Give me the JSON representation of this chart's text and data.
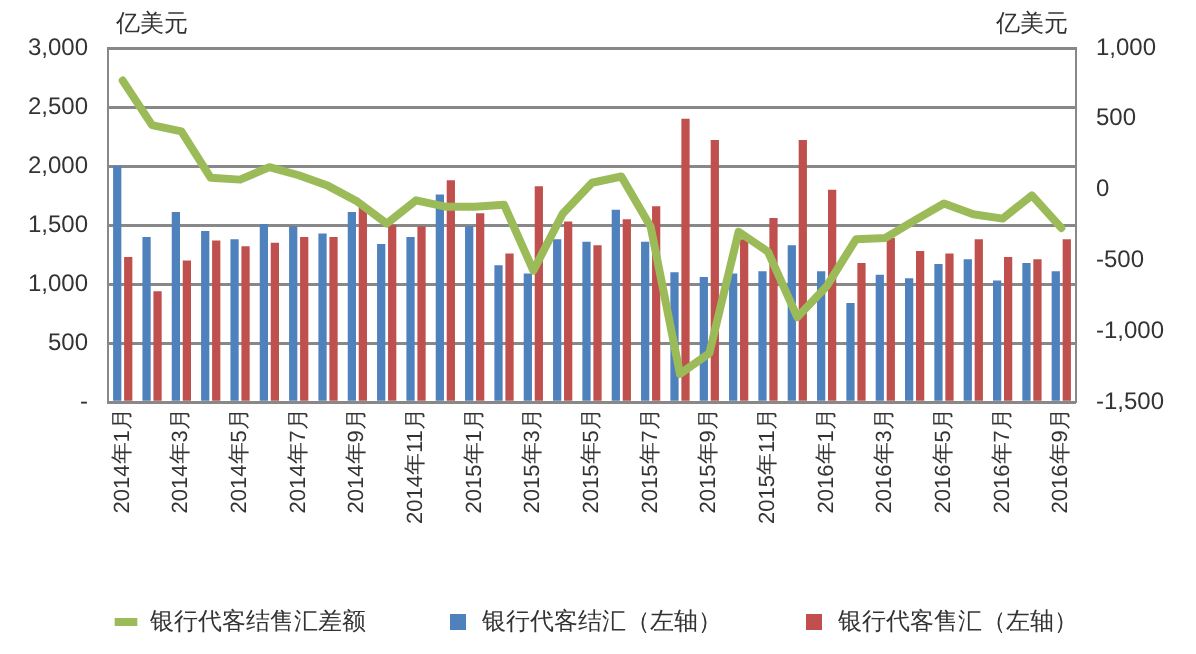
{
  "chart_data": {
    "type": "bar",
    "ylabel": "亿美元",
    "y2label": "亿美元",
    "categories": [
      "2014年1月",
      null,
      "2014年3月",
      null,
      "2014年5月",
      null,
      "2014年7月",
      null,
      "2014年9月",
      null,
      "2014年11月",
      null,
      "2015年1月",
      null,
      "2015年3月",
      null,
      "2015年5月",
      null,
      "2015年7月",
      null,
      "2015年9月",
      null,
      "2015年11月",
      null,
      "2016年1月",
      null,
      "2016年3月",
      null,
      "2016年5月",
      null,
      "2016年7月",
      null,
      "2016年9月"
    ],
    "series": [
      {
        "name": "银行代客结汇（左轴）",
        "color": "#4f81bd",
        "values": [
          2000,
          1400,
          1610,
          1450,
          1380,
          1510,
          1490,
          1430,
          1610,
          1340,
          1400,
          1760,
          1490,
          1160,
          1090,
          1380,
          1360,
          1630,
          1360,
          1100,
          1060,
          1090,
          1110,
          1330,
          1110,
          840,
          1080,
          1050,
          1170,
          1210,
          1030,
          1180,
          1110
        ]
      },
      {
        "name": "银行代客售汇（左轴）",
        "color": "#c0504d",
        "values": [
          1230,
          940,
          1200,
          1370,
          1320,
          1350,
          1400,
          1400,
          1660,
          1500,
          1490,
          1880,
          1600,
          1260,
          1830,
          1530,
          1330,
          1550,
          1660,
          2400,
          2220,
          1380,
          1560,
          2220,
          1800,
          1180,
          1390,
          1280,
          1260,
          1380,
          1230,
          1210,
          1380
        ]
      },
      {
        "name": "银行代客结售汇差额",
        "type": "line",
        "axis": "y2",
        "color": "#9bbb59",
        "values": [
          770,
          456,
          411,
          84,
          71,
          159,
          102,
          27,
          -84,
          -239,
          -75,
          -120,
          -120,
          -106,
          -571,
          -170,
          49,
          93,
          -261,
          -1300,
          -1155,
          -297,
          -438,
          -900,
          -682,
          -350,
          -341,
          -217,
          -97,
          -173,
          -204,
          -40,
          -270
        ]
      }
    ],
    "ylim": [
      0,
      3000
    ],
    "yticks": [
      {
        "value": 0,
        "label": "-"
      },
      {
        "value": 500,
        "label": "500"
      },
      {
        "value": 1000,
        "label": "1,000"
      },
      {
        "value": 1500,
        "label": "1,500"
      },
      {
        "value": 2000,
        "label": "2,000"
      },
      {
        "value": 2500,
        "label": "2,500"
      },
      {
        "value": 3000,
        "label": "3,000"
      }
    ],
    "y2lim": [
      -1500,
      1000
    ],
    "y2ticks": [
      {
        "value": -1500,
        "label": "-1,500"
      },
      {
        "value": -1000,
        "label": "-1,000"
      },
      {
        "value": -500,
        "label": "-500"
      },
      0,
      500,
      {
        "value": 1000,
        "label": "1,000"
      }
    ],
    "grid": "y",
    "legend": "bottom",
    "marker": "none",
    "line_style": "solid"
  }
}
